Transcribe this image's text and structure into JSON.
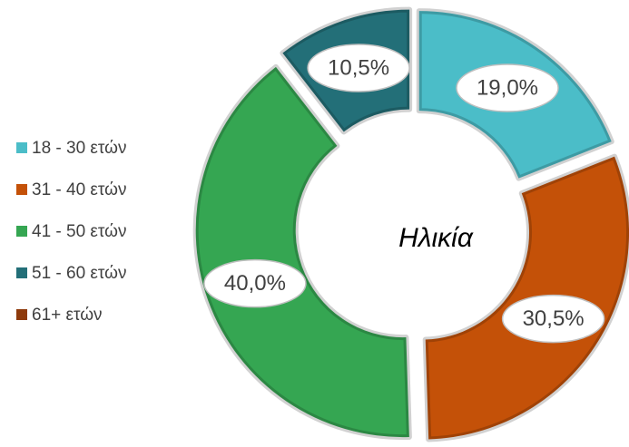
{
  "chart_data": {
    "type": "donut",
    "title": "Ηλικία",
    "categories": [
      "18 - 30 ετών",
      "31 - 40 ετών",
      "41 - 50 ετών",
      "51 - 60 ετών",
      "61+ ετών"
    ],
    "values": [
      19.0,
      30.5,
      40.0,
      10.5,
      0
    ],
    "value_labels": [
      "19,0%",
      "30,5%",
      "40,0%",
      "10,5%",
      null
    ],
    "colors": [
      "#4bbdc8",
      "#c45108",
      "#35a652",
      "#236f78",
      "#8e3a0c"
    ],
    "legend": "left"
  }
}
